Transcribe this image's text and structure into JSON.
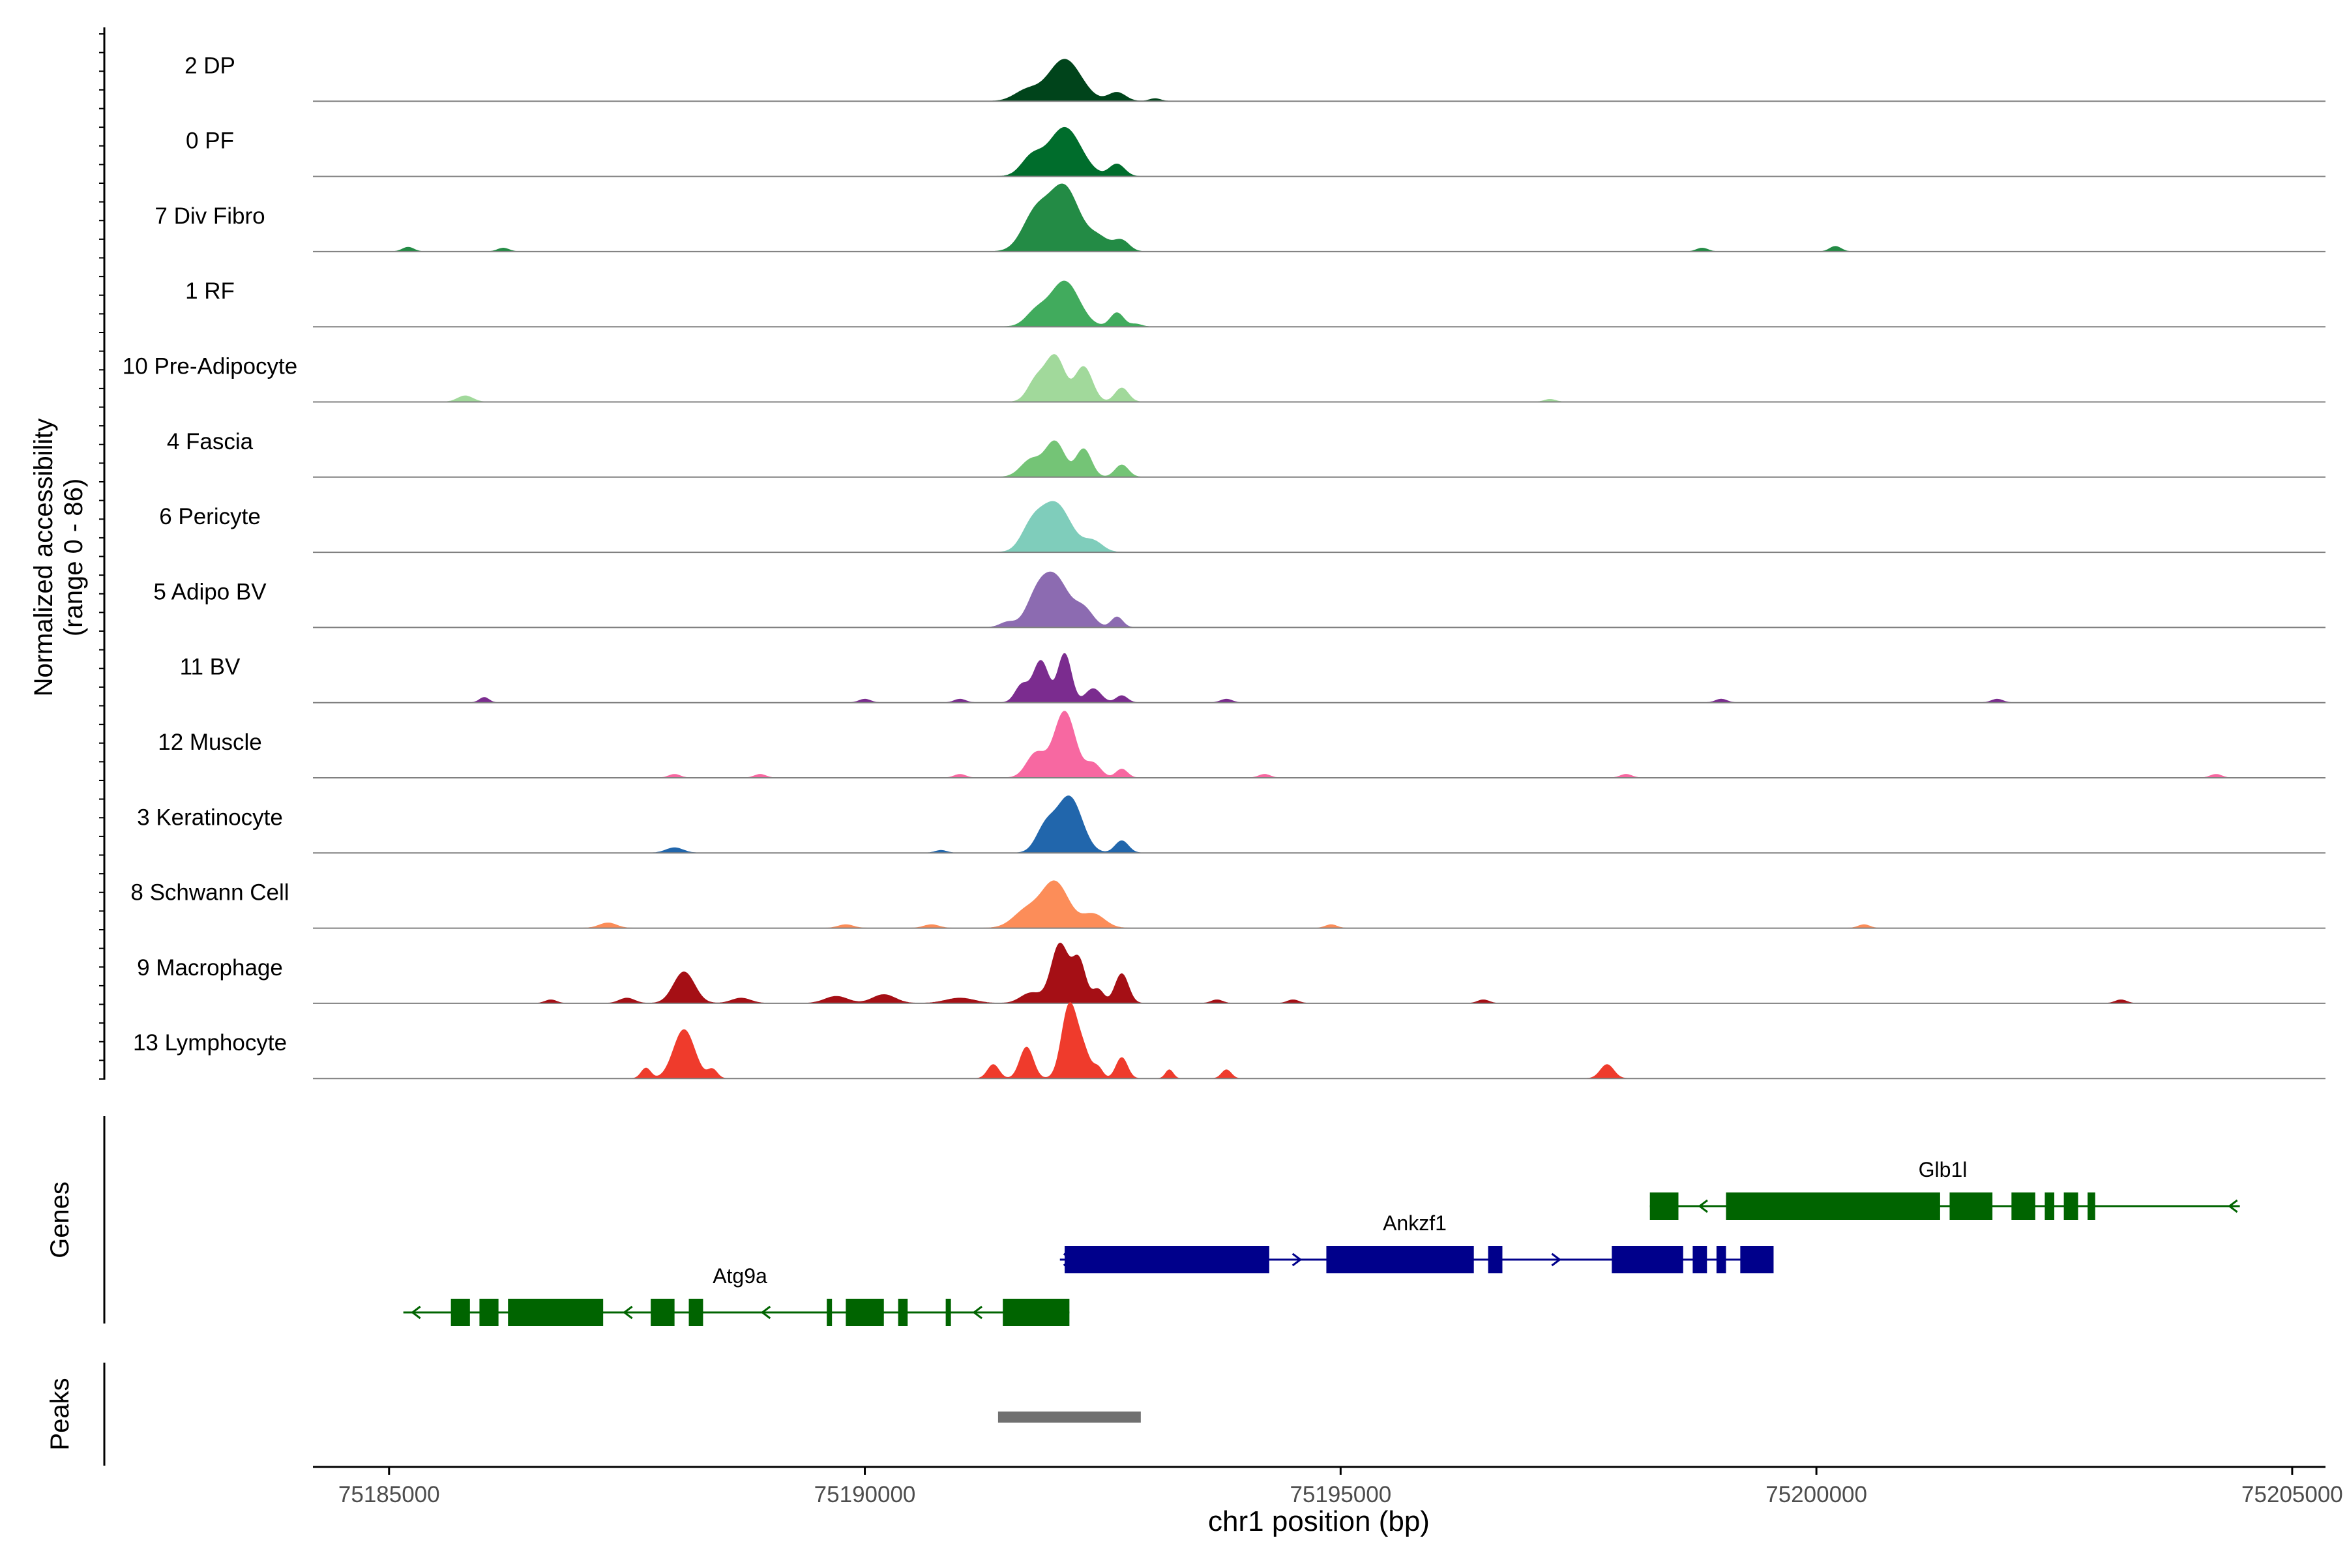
{
  "chart_data": {
    "type": "area",
    "title": "",
    "xlabel": "chr1 position (bp)",
    "xlim": [
      75184200,
      75205350
    ],
    "x_ticks": [
      75185000,
      75190000,
      75195000,
      75200000,
      75205000
    ],
    "x_tick_labels": [
      "75185000",
      "75190000",
      "75195000",
      "75200000",
      "75205000"
    ],
    "coverage_panel": {
      "ylabel_line1": "Normalized accessibility",
      "ylabel_line2": "(range 0 - 86)",
      "ylim": [
        0,
        86
      ],
      "tracks": [
        {
          "name": "2 DP",
          "color": "#00441B",
          "peaks": [
            [
              75192100,
              24,
              170
            ],
            [
              75191700,
              6,
              130
            ],
            [
              75192650,
              5,
              90
            ],
            [
              75193050,
              1.5,
              60
            ]
          ]
        },
        {
          "name": "0 PF",
          "color": "#006D2C",
          "peaks": [
            [
              75192100,
              28,
              170
            ],
            [
              75191750,
              10,
              110
            ],
            [
              75192650,
              7,
              80
            ]
          ]
        },
        {
          "name": "7 Div Fibro",
          "color": "#238B45",
          "peaks": [
            [
              75192100,
              36,
              150
            ],
            [
              75191800,
              22,
              140
            ],
            [
              75192450,
              8,
              120
            ],
            [
              75192700,
              6,
              80
            ],
            [
              75185200,
              2.5,
              60
            ],
            [
              75186200,
              2,
              60
            ],
            [
              75200200,
              3,
              60
            ],
            [
              75198800,
              2,
              60
            ]
          ]
        },
        {
          "name": "1 RF",
          "color": "#41AB5D",
          "peaks": [
            [
              75192100,
              26,
              150
            ],
            [
              75191800,
              8,
              110
            ],
            [
              75192650,
              8,
              70
            ],
            [
              75192850,
              1.5,
              60
            ]
          ]
        },
        {
          "name": "10 Pre-Adipocyte",
          "color": "#A1D99B",
          "peaks": [
            [
              75192000,
              26,
              100
            ],
            [
              75192300,
              20,
              90
            ],
            [
              75191800,
              12,
              90
            ],
            [
              75192700,
              8,
              70
            ],
            [
              75185800,
              3.5,
              80
            ],
            [
              75197200,
              1.5,
              60
            ]
          ]
        },
        {
          "name": "4 Fascia",
          "color": "#74C476",
          "peaks": [
            [
              75192000,
              20,
              100
            ],
            [
              75192300,
              16,
              80
            ],
            [
              75191750,
              10,
              110
            ],
            [
              75192700,
              7,
              70
            ]
          ]
        },
        {
          "name": "6 Pericyte",
          "color": "#7FCDBB",
          "peaks": [
            [
              75192000,
              28,
              160
            ],
            [
              75191750,
              12,
              110
            ],
            [
              75192400,
              6,
              100
            ]
          ]
        },
        {
          "name": "5 Adipo BV",
          "color": "#8C6BB1",
          "peaks": [
            [
              75192000,
              28,
              140
            ],
            [
              75191800,
              14,
              110
            ],
            [
              75192300,
              10,
              100
            ],
            [
              75192650,
              6,
              60
            ],
            [
              75191500,
              3,
              80
            ]
          ]
        },
        {
          "name": "11 BV",
          "color": "#7B2C8F",
          "peaks": [
            [
              75192100,
              28,
              70
            ],
            [
              75191850,
              24,
              80
            ],
            [
              75191650,
              10,
              70
            ],
            [
              75192400,
              8,
              80
            ],
            [
              75192700,
              4,
              60
            ],
            [
              75186000,
              3,
              50
            ],
            [
              75190000,
              2,
              60
            ],
            [
              75191000,
              2,
              60
            ],
            [
              75193800,
              2,
              60
            ],
            [
              75199000,
              2,
              60
            ],
            [
              75201900,
              2,
              60
            ]
          ]
        },
        {
          "name": "12 Muscle",
          "color": "#F768A1",
          "peaks": [
            [
              75192100,
              38,
              110
            ],
            [
              75191800,
              14,
              100
            ],
            [
              75192400,
              8,
              80
            ],
            [
              75192700,
              5,
              60
            ],
            [
              75191000,
              2,
              60
            ],
            [
              75188000,
              2,
              60
            ],
            [
              75188900,
              2,
              60
            ],
            [
              75194200,
              2,
              60
            ],
            [
              75198000,
              2,
              60
            ],
            [
              75204200,
              2,
              60
            ]
          ]
        },
        {
          "name": "3 Keratinocyte",
          "color": "#2166AC",
          "peaks": [
            [
              75192150,
              32,
              130
            ],
            [
              75191900,
              14,
              100
            ],
            [
              75192700,
              7,
              70
            ],
            [
              75188000,
              3,
              90
            ],
            [
              75190800,
              1.5,
              60
            ]
          ]
        },
        {
          "name": "8 Schwann Cell",
          "color": "#FC8D59",
          "peaks": [
            [
              75192000,
              26,
              140
            ],
            [
              75191700,
              10,
              140
            ],
            [
              75192400,
              8,
              120
            ],
            [
              75187300,
              3,
              90
            ],
            [
              75189800,
              2,
              80
            ],
            [
              75190700,
              2,
              80
            ],
            [
              75194900,
              2,
              60
            ],
            [
              75200500,
              2,
              60
            ]
          ]
        },
        {
          "name": "9 Macrophage",
          "color": "#A50F15",
          "peaks": [
            [
              75192050,
              34,
              90
            ],
            [
              75192250,
              24,
              70
            ],
            [
              75188100,
              18,
              110
            ],
            [
              75192700,
              17,
              70
            ],
            [
              75192450,
              8,
              60
            ],
            [
              75191750,
              6,
              110
            ],
            [
              75190200,
              5,
              120
            ],
            [
              75189700,
              4,
              120
            ],
            [
              75191000,
              3,
              150
            ],
            [
              75187500,
              3,
              80
            ],
            [
              75188700,
              3,
              100
            ],
            [
              75193700,
              2,
              60
            ],
            [
              75194500,
              2,
              60
            ],
            [
              75186700,
              2,
              60
            ],
            [
              75196500,
              2,
              60
            ],
            [
              75203200,
              2,
              60
            ]
          ]
        },
        {
          "name": "13 Lymphocyte",
          "color": "#EF3B2C",
          "peaks": [
            [
              75192150,
              42,
              80
            ],
            [
              75188100,
              28,
              110
            ],
            [
              75191700,
              18,
              70
            ],
            [
              75192300,
              14,
              70
            ],
            [
              75192700,
              12,
              60
            ],
            [
              75191350,
              8,
              60
            ],
            [
              75187700,
              6,
              50
            ],
            [
              75188400,
              5,
              50
            ],
            [
              75192450,
              6,
              50
            ],
            [
              75193200,
              5,
              40
            ],
            [
              75193800,
              5,
              50
            ],
            [
              75197800,
              8,
              70
            ]
          ]
        }
      ]
    },
    "genes_panel": {
      "ylabel": "Genes",
      "genes": [
        {
          "name": "Glb1l",
          "strand": "-",
          "color": "#006400",
          "row": 0,
          "start": 75198250,
          "end": 75204450,
          "exons": [
            [
              75198250,
              75198550
            ],
            [
              75199050,
              75201300
            ],
            [
              75201400,
              75201850
            ],
            [
              75202050,
              75202300
            ],
            [
              75202400,
              75202500
            ],
            [
              75202600,
              75202750
            ],
            [
              75202850,
              75202930
            ]
          ]
        },
        {
          "name": "Ankzf1",
          "strand": "+",
          "color": "#00008B",
          "row": 1,
          "start": 75192050,
          "end": 75199300,
          "exons": [
            [
              75192100,
              75194250
            ],
            [
              75194850,
              75196400
            ],
            [
              75196550,
              75196700
            ],
            [
              75197850,
              75198600
            ],
            [
              75198700,
              75198850
            ],
            [
              75198950,
              75199050
            ],
            [
              75199200,
              75199550
            ]
          ]
        },
        {
          "name": "Atg9a",
          "strand": "-",
          "color": "#006400",
          "row": 2,
          "start": 75185150,
          "end": 75192150,
          "exons": [
            [
              75185650,
              75185850
            ],
            [
              75185950,
              75186150
            ],
            [
              75186250,
              75187250
            ],
            [
              75187750,
              75188000
            ],
            [
              75188150,
              75188300
            ],
            [
              75189600,
              75189650
            ],
            [
              75189800,
              75190200
            ],
            [
              75190350,
              75190450
            ],
            [
              75190850,
              75190900
            ],
            [
              75191450,
              75192150
            ]
          ]
        }
      ]
    },
    "peaks_panel": {
      "ylabel": "Peaks",
      "color": "#707070",
      "ranges": [
        [
          75191400,
          75192900
        ]
      ]
    }
  }
}
